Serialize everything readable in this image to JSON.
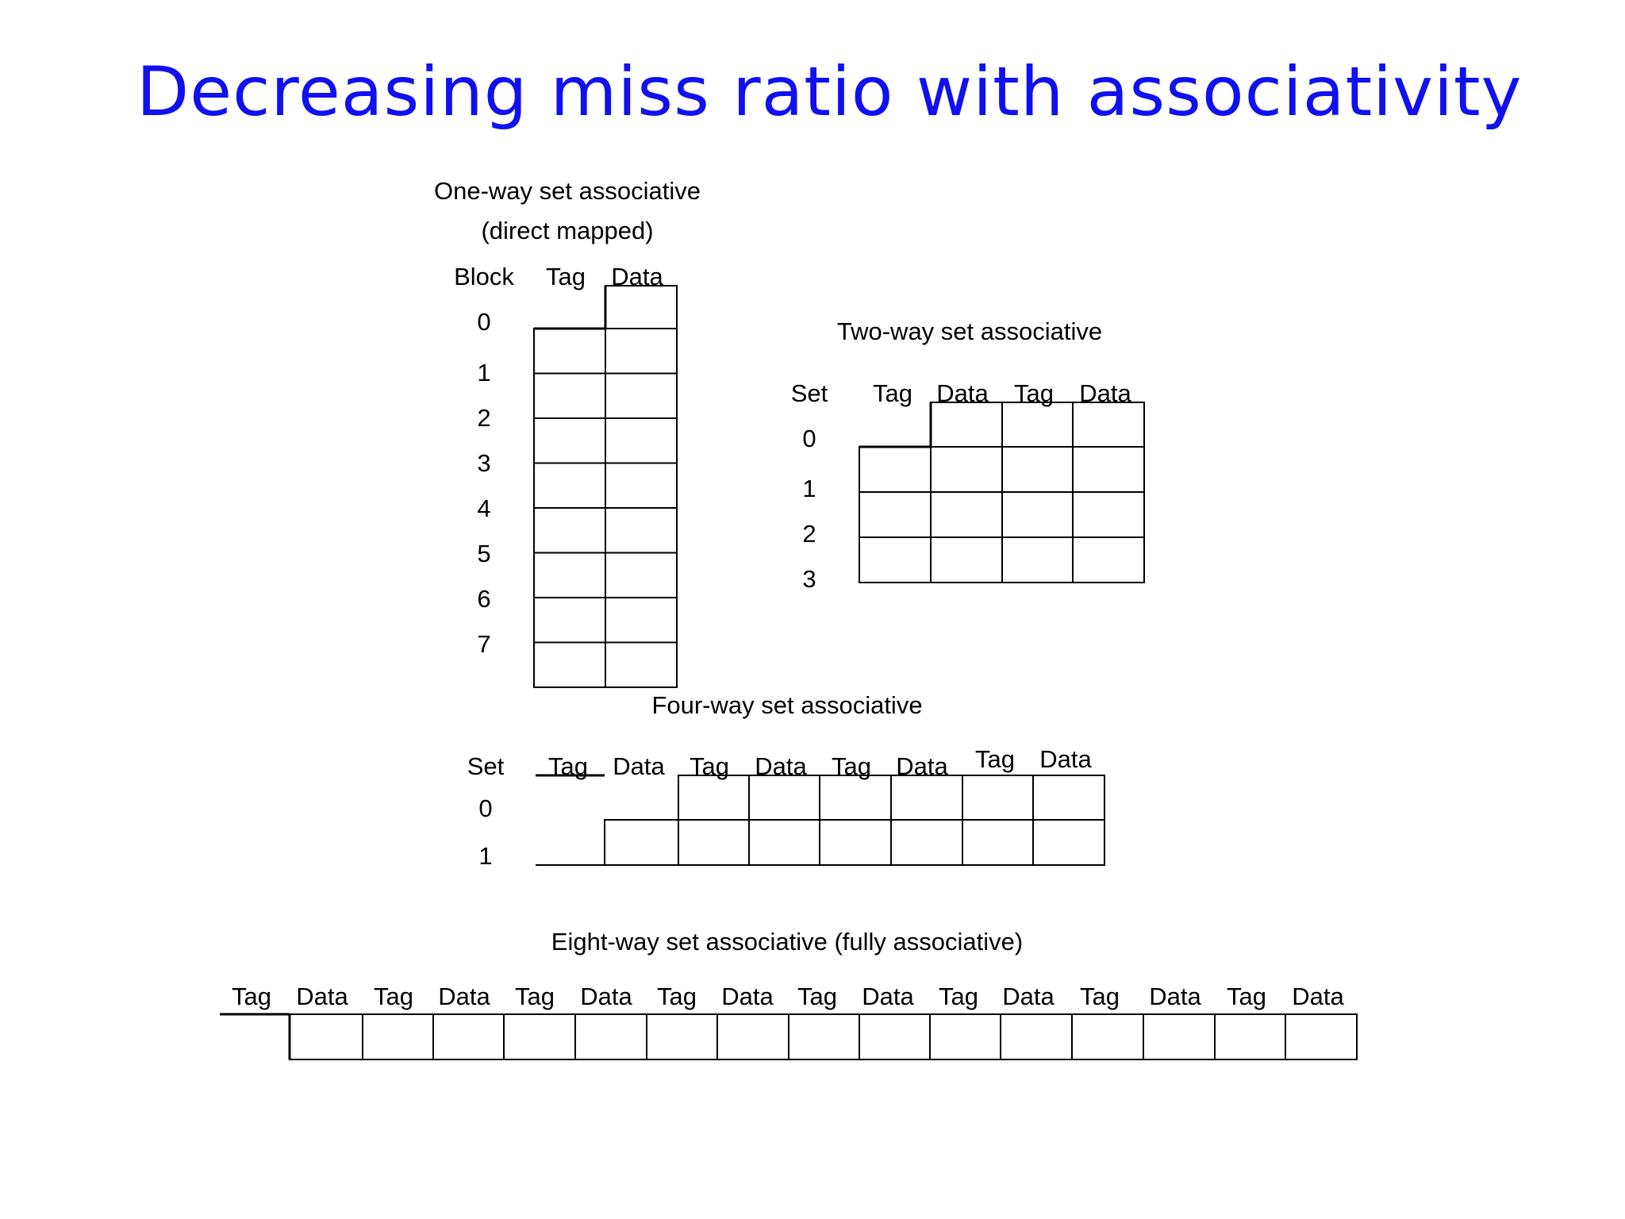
{
  "title": "Decreasing miss ratio with associativity",
  "one_way": {
    "title_line1": "One-way set associative",
    "title_line2": "(direct mapped)",
    "row_header": "Block",
    "col_headers": [
      "Tag",
      "Data"
    ],
    "rows": [
      "0",
      "1",
      "2",
      "3",
      "4",
      "5",
      "6",
      "7"
    ]
  },
  "two_way": {
    "title": "Two-way set associative",
    "row_header": "Set",
    "col_headers": [
      "Tag",
      "Data",
      "Tag",
      "Data"
    ],
    "rows": [
      "0",
      "1",
      "2",
      "3"
    ]
  },
  "four_way": {
    "title": "Four-way set associative",
    "row_header": "Set",
    "col_headers": [
      "Tag",
      "Data",
      "Tag",
      "Data",
      "Tag",
      "Data",
      "Tag",
      "Data"
    ],
    "rows": [
      "0",
      "1"
    ]
  },
  "eight_way": {
    "title": "Eight-way set associative (fully associative)",
    "col_headers": [
      "Tag",
      "Data",
      "Tag",
      "Data",
      "Tag",
      "Data",
      "Tag",
      "Data",
      "Tag",
      "Data",
      "Tag",
      "Data",
      "Tag",
      "Data",
      "Tag",
      "Data"
    ]
  }
}
